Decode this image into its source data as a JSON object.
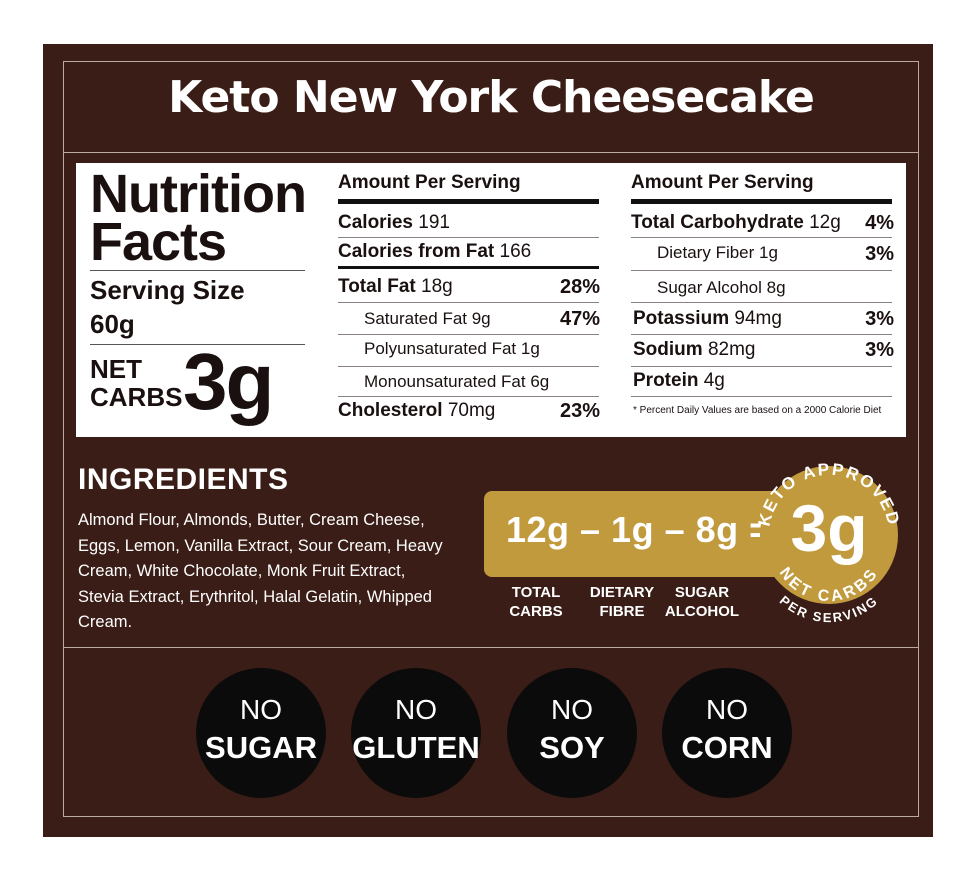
{
  "title": "Keto New York Cheesecake",
  "colors": {
    "background": "#3a1d16",
    "gold": "#c29a3e",
    "panel": "#ffffff",
    "circle": "#0b0b0b"
  },
  "nutrition": {
    "heading_line1": "Nutrition",
    "heading_line2": "Facts",
    "serving_size_label": "Serving Size",
    "serving_size_value": "60g",
    "net_label_1": "NET",
    "net_label_2": "CARBS",
    "net_value": "3g",
    "col1": {
      "header": "Amount Per Serving",
      "calories_label": "Calories",
      "calories_value": "191",
      "cal_fat_label": "Calories from Fat",
      "cal_fat_value": "166",
      "total_fat_label": "Total Fat",
      "total_fat_value": "18g",
      "total_fat_pct": "28%",
      "sat_fat": "Saturated Fat 9g",
      "sat_fat_pct": "47%",
      "poly_fat": "Polyunsaturated Fat 1g",
      "mono_fat": "Monounsaturated Fat 6g",
      "chol_label": "Cholesterol",
      "chol_value": "70mg",
      "chol_pct": "23%"
    },
    "col2": {
      "header": "Amount Per Serving",
      "carb_label": "Total Carbohydrate",
      "carb_value": "12g",
      "carb_pct": "4%",
      "fiber": "Dietary Fiber 1g",
      "fiber_pct": "3%",
      "sugar_alcohol": "Sugar Alcohol 8g",
      "potassium_label": "Potassium",
      "potassium_value": "94mg",
      "potassium_pct": "3%",
      "sodium_label": "Sodium",
      "sodium_value": "82mg",
      "sodium_pct": "3%",
      "protein_label": "Protein",
      "protein_value": "4g",
      "footnote": "* Percent Daily Values are based on a 2000 Calorie Diet"
    }
  },
  "ingredients": {
    "heading": "INGREDIENTS",
    "text": "Almond Flour, Almonds, Butter, Cream Cheese, Eggs, Lemon, Vanilla Extract, Sour Cream, Heavy Cream, White Chocolate, Monk Fruit Extract, Stevia Extract, Erythritol, Halal Gelatin, Whipped Cream."
  },
  "carb_calc": {
    "equation": "12g – 1g – 8g  =",
    "total_carbs": "TOTAL CARBS",
    "dietary_fibre": "DIETARY FIBRE",
    "sugar_alcohol": "SUGAR ALCOHOL",
    "badge_top": "KETO APPROVED",
    "badge_value": "3g",
    "badge_bottom": "NET CARBS",
    "badge_footer": "PER SERVING"
  },
  "free_from": [
    {
      "no": "NO",
      "word": "SUGAR"
    },
    {
      "no": "NO",
      "word": "GLUTEN"
    },
    {
      "no": "NO",
      "word": "SOY"
    },
    {
      "no": "NO",
      "word": "CORN"
    }
  ]
}
